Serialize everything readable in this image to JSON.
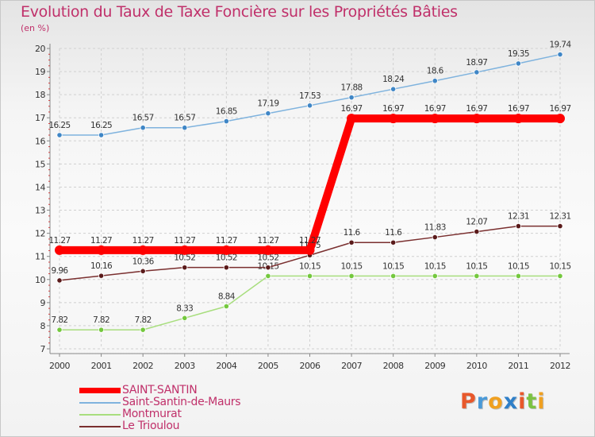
{
  "chart_data": {
    "type": "line",
    "title": "Evolution du Taux de Taxe Foncière sur les Propriétés Bâties",
    "ylabel": "(en %)",
    "xlabel": "",
    "x": [
      "2000",
      "2001",
      "2002",
      "2003",
      "2004",
      "2005",
      "2006",
      "2007",
      "2008",
      "2009",
      "2010",
      "2011",
      "2012"
    ],
    "ylim": [
      7,
      20
    ],
    "yticks": [
      "7",
      "8",
      "9",
      "10",
      "11",
      "12",
      "13",
      "14",
      "15",
      "16",
      "17",
      "18",
      "19",
      "20"
    ],
    "series": [
      {
        "name": "SAINT-SANTIN",
        "color": "#ff0000",
        "point_color": "#ff0000",
        "values": [
          11.27,
          11.27,
          11.27,
          11.27,
          11.27,
          11.27,
          11.27,
          16.97,
          16.97,
          16.97,
          16.97,
          16.97,
          16.97
        ],
        "labels": [
          "11.27",
          "11.27",
          "11.27",
          "11.27",
          "11.27",
          "11.27",
          "11.27",
          "16.97",
          "16.97",
          "16.97",
          "16.97",
          "16.97",
          "16.97"
        ]
      },
      {
        "name": "Saint-Santin-de-Maurs",
        "color": "#7fb3de",
        "point_color": "#3f86c6",
        "values": [
          16.25,
          16.25,
          16.57,
          16.57,
          16.85,
          17.19,
          17.53,
          17.88,
          18.24,
          18.6,
          18.97,
          19.35,
          19.74
        ],
        "labels": [
          "16.25",
          "16.25",
          "16.57",
          "16.57",
          "16.85",
          "17.19",
          "17.53",
          "17.88",
          "18.24",
          "18.6",
          "18.97",
          "19.35",
          "19.74"
        ]
      },
      {
        "name": "Montmurat",
        "color": "#a8de7e",
        "point_color": "#74c83e",
        "values": [
          7.82,
          7.82,
          7.82,
          8.33,
          8.84,
          10.15,
          10.15,
          10.15,
          10.15,
          10.15,
          10.15,
          10.15,
          10.15
        ],
        "labels": [
          "7.82",
          "7.82",
          "7.82",
          "8.33",
          "8.84",
          "10.15",
          "10.15",
          "10.15",
          "10.15",
          "10.15",
          "10.15",
          "10.15",
          "10.15"
        ]
      },
      {
        "name": "Le Trioulou",
        "color": "#7a2f2f",
        "point_color": "#5a1a1a",
        "values": [
          9.96,
          10.16,
          10.36,
          10.52,
          10.52,
          10.52,
          11.05,
          11.6,
          11.6,
          11.83,
          12.07,
          12.31,
          12.31
        ],
        "labels": [
          "9.96",
          "10.16",
          "10.36",
          "10.52",
          "10.52",
          "10.52",
          "11.05",
          "11.6",
          "11.6",
          "11.83",
          "12.07",
          "12.31",
          "12.31"
        ]
      }
    ],
    "legend_position": "bottom-left"
  },
  "logo": {
    "letters": [
      "P",
      "r",
      "o",
      "x",
      "i",
      "t",
      "i"
    ],
    "colors": [
      "#e8582b",
      "#4a9ad8",
      "#f0a020",
      "#2f7fc8",
      "#e8582b",
      "#7cc242",
      "#f0a020"
    ]
  }
}
